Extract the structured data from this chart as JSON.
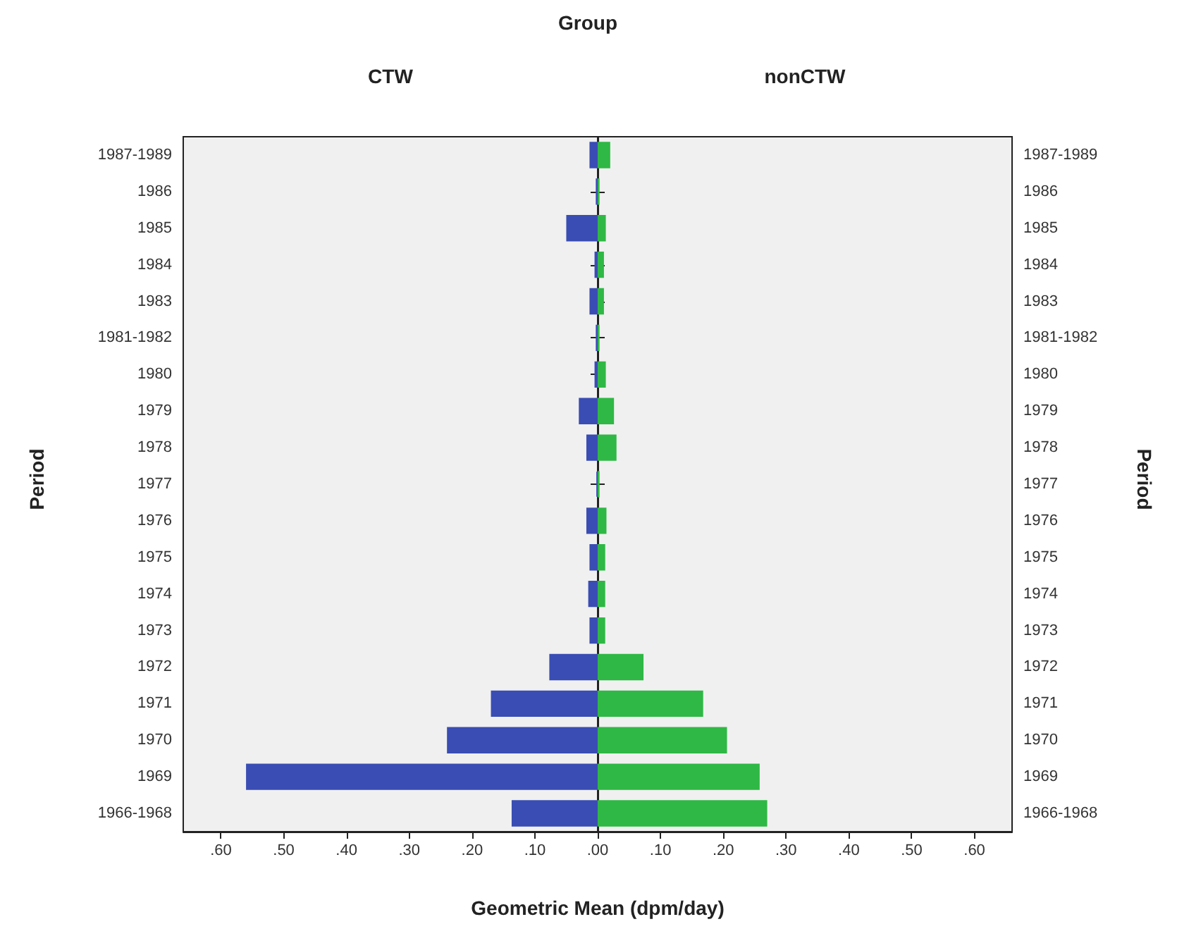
{
  "chart_data": [
    {
      "type": "bar",
      "orientation": "horizontal",
      "title": "Group",
      "xlabel": "Geometric Mean (dpm/day)",
      "ylabel": "Period",
      "categories": [
        "1987-1989",
        "1986",
        "1985",
        "1984",
        "1983",
        "1981-1982",
        "1980",
        "1979",
        "1978",
        "1977",
        "1976",
        "1975",
        "1974",
        "1973",
        "1972",
        "1971",
        "1970",
        "1969",
        "1966-1968"
      ],
      "xlim": [
        0.66,
        0
      ],
      "xticks": [
        {
          "value": 0.6,
          "label": ".60"
        },
        {
          "value": 0.5,
          "label": ".50"
        },
        {
          "value": 0.4,
          "label": ".40"
        },
        {
          "value": 0.3,
          "label": ".30"
        },
        {
          "value": 0.2,
          "label": ".20"
        },
        {
          "value": 0.1,
          "label": ".10"
        },
        {
          "value": 0,
          "label": ".00"
        }
      ],
      "grid": false,
      "series": [
        {
          "name": "CTW",
          "color": "#3a4db4",
          "values": [
            0.013,
            0.003,
            0.05,
            0.005,
            0.013,
            0.003,
            0.005,
            0.03,
            0.018,
            0.002,
            0.018,
            0.013,
            0.015,
            0.013,
            0.077,
            0.17,
            0.24,
            0.56,
            0.137
          ]
        }
      ]
    },
    {
      "type": "bar",
      "orientation": "horizontal",
      "ylabel": "Period",
      "categories": [
        "1987-1989",
        "1986",
        "1985",
        "1984",
        "1983",
        "1981-1982",
        "1980",
        "1979",
        "1978",
        "1977",
        "1976",
        "1975",
        "1974",
        "1973",
        "1972",
        "1971",
        "1970",
        "1969",
        "1966-1968"
      ],
      "xlim": [
        0,
        0.66
      ],
      "xticks": [
        {
          "value": 0,
          "label": null
        },
        {
          "value": 0.1,
          "label": ".10"
        },
        {
          "value": 0.2,
          "label": ".20"
        },
        {
          "value": 0.3,
          "label": ".30"
        },
        {
          "value": 0.4,
          "label": ".40"
        },
        {
          "value": 0.5,
          "label": ".50"
        },
        {
          "value": 0.6,
          "label": ".60"
        }
      ],
      "grid": false,
      "series": [
        {
          "name": "nonCTW",
          "color": "#2fb845",
          "values": [
            0.02,
            0.003,
            0.013,
            0.01,
            0.01,
            0.003,
            0.013,
            0.026,
            0.03,
            0.003,
            0.014,
            0.012,
            0.012,
            0.012,
            0.073,
            0.168,
            0.206,
            0.258,
            0.27
          ]
        }
      ]
    }
  ]
}
